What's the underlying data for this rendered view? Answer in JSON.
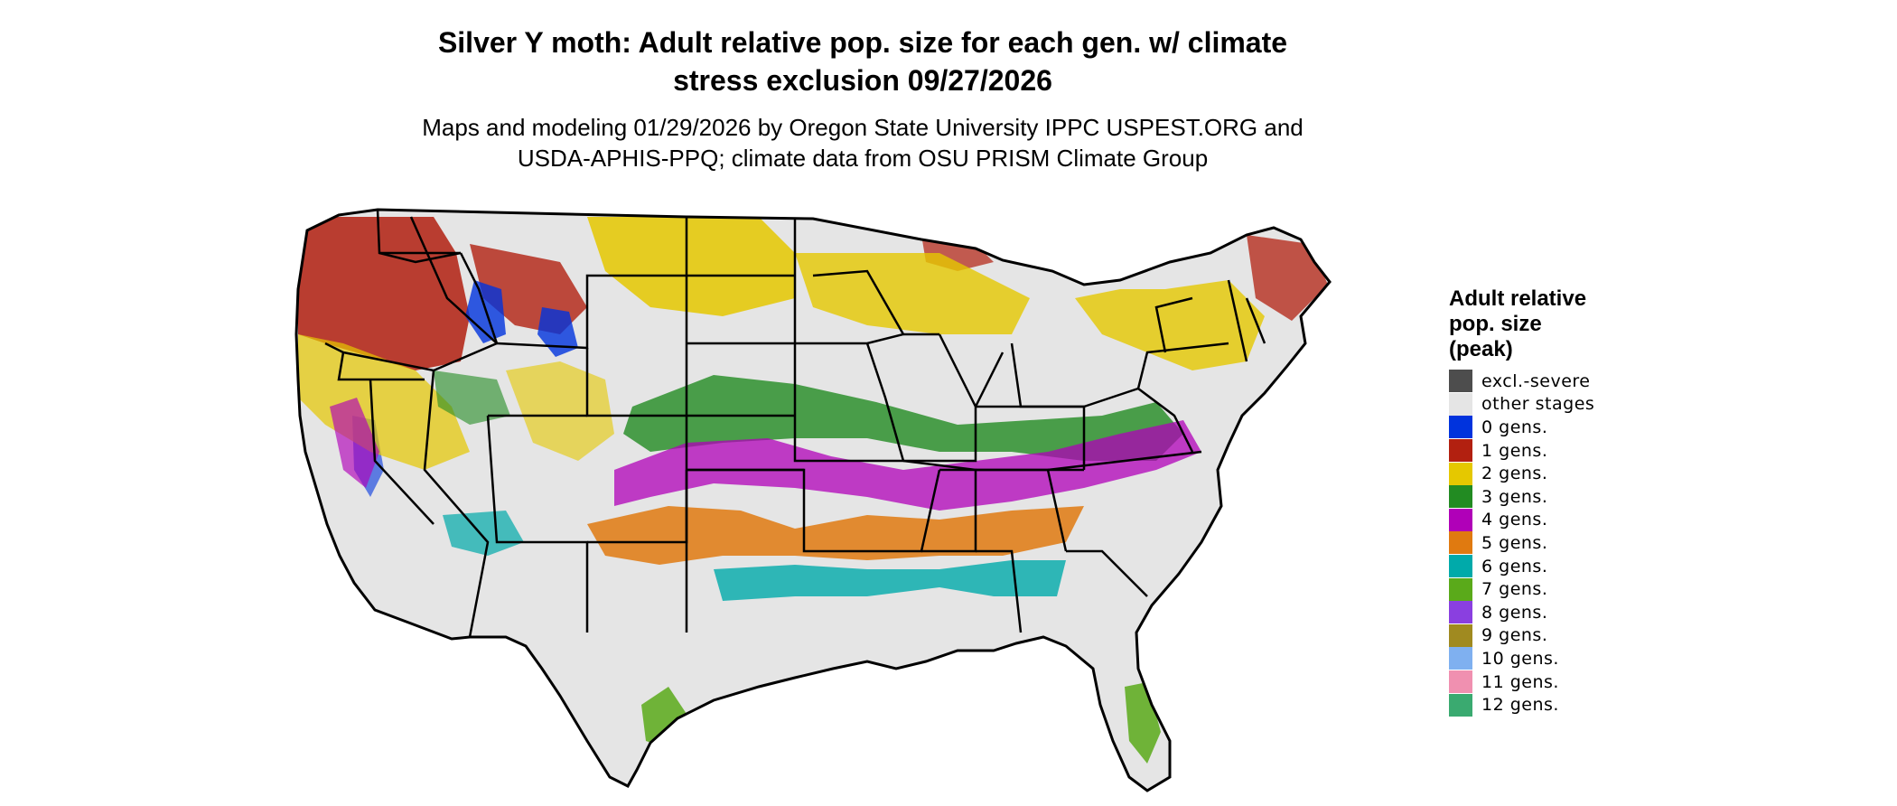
{
  "title": {
    "line1": "Silver Y moth: Adult relative pop. size for each gen. w/ climate",
    "line2": "stress exclusion 09/27/2026"
  },
  "subtitle": {
    "line1": "Maps and modeling 01/29/2026 by Oregon State University IPPC USPEST.ORG and",
    "line2": "USDA-APHIS-PPQ; climate data from OSU PRISM Climate Group"
  },
  "legend": {
    "title_lines": [
      "Adult relative",
      "pop. size",
      "(peak)"
    ],
    "items": [
      {
        "label": "excl.-severe",
        "color": "#4d4d4d"
      },
      {
        "label": "other stages",
        "color": "#e5e5e5"
      },
      {
        "label": "0 gens.",
        "color": "#0033dd"
      },
      {
        "label": "1 gens.",
        "color": "#b22010"
      },
      {
        "label": "2 gens.",
        "color": "#e5c800"
      },
      {
        "label": "3 gens.",
        "color": "#228b22"
      },
      {
        "label": "4 gens.",
        "color": "#b000b8"
      },
      {
        "label": "5 gens.",
        "color": "#e07a10"
      },
      {
        "label": "6 gens.",
        "color": "#00aaaa"
      },
      {
        "label": "7 gens.",
        "color": "#5aaa1a"
      },
      {
        "label": "8 gens.",
        "color": "#8a3fe0"
      },
      {
        "label": "9 gens.",
        "color": "#a08a20"
      },
      {
        "label": "10 gens.",
        "color": "#7fb0f0"
      },
      {
        "label": "11 gens.",
        "color": "#f090b0"
      },
      {
        "label": "12 gens.",
        "color": "#3aaa70"
      }
    ]
  },
  "map_colors": {
    "base": "#e5e5e5",
    "border": "#000000"
  }
}
